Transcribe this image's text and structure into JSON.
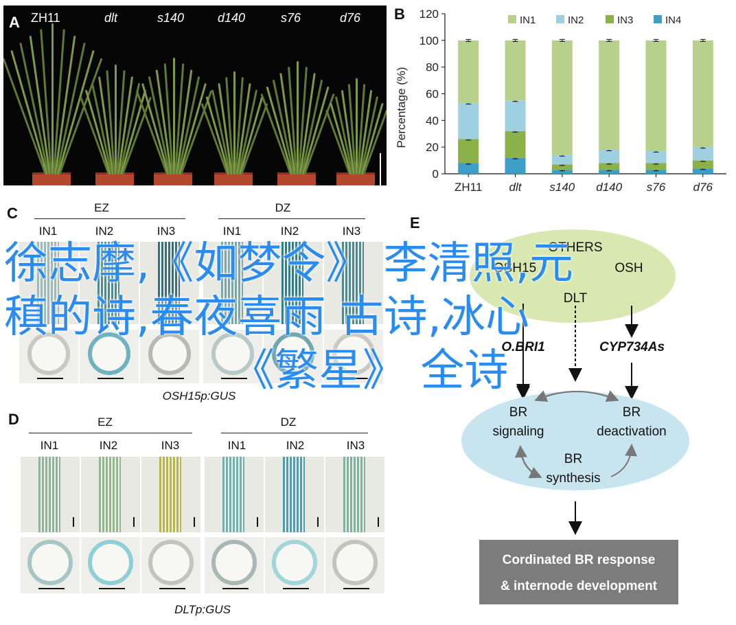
{
  "panels": {
    "a": {
      "letter": "A",
      "labels": [
        "ZH11",
        "dlt",
        "s140",
        "d140",
        "s76",
        "d76"
      ]
    },
    "b": {
      "letter": "B"
    },
    "c": {
      "letter": "C",
      "group1": "EZ",
      "group2": "DZ",
      "sub": [
        "IN1",
        "IN2",
        "IN3",
        "IN1",
        "IN2",
        "IN3"
      ],
      "caption": "OSH15p:GUS"
    },
    "d": {
      "letter": "D",
      "group1": "EZ",
      "group2": "DZ",
      "sub": [
        "IN1",
        "IN2",
        "IN3",
        "IN1",
        "IN2",
        "IN3"
      ],
      "caption": "DLTp:GUS"
    },
    "e": {
      "letter": "E",
      "others": "OTHERS",
      "osh": "OSH15",
      "osh_partial": "OSH",
      "dlt": "DLT",
      "bri1": "O.BRI1",
      "cyp": "CYP734As",
      "br_signaling_1": "BR",
      "br_signaling_2": "signaling",
      "br_deact_1": "BR",
      "br_deact_2": "deactivation",
      "br_synth_1": "BR",
      "br_synth_2": "synthesis",
      "box_line1": "Cordinated BR response",
      "box_line2": "& internode development"
    }
  },
  "overlay": {
    "line1": "徐志摩,《如梦令》 李清照,元",
    "line2": "稹的诗,春夜喜雨 古诗,冰心",
    "line3": "《繁星》 全诗"
  },
  "chart_data": {
    "type": "bar",
    "stacked": true,
    "categories": [
      "ZH11",
      "dlt",
      "s140",
      "d140",
      "s76",
      "d76"
    ],
    "series": [
      {
        "name": "IN4",
        "values": [
          8,
          12,
          3,
          3,
          3,
          4
        ],
        "color": "#3f9ec6"
      },
      {
        "name": "IN3",
        "values": [
          18,
          20,
          4,
          5,
          5,
          6
        ],
        "color": "#8cb04a"
      },
      {
        "name": "IN2",
        "values": [
          27,
          23,
          7,
          10,
          9,
          10
        ],
        "color": "#9fd0e0"
      },
      {
        "name": "IN1",
        "values": [
          47,
          45,
          86,
          82,
          83,
          80
        ],
        "color": "#b7d08c"
      }
    ],
    "ylabel": "Percentage (%)",
    "ylim": [
      0,
      120
    ],
    "yticks": [
      0,
      20,
      40,
      60,
      80,
      100,
      120
    ],
    "legend": "top",
    "legend_order": [
      "IN1",
      "IN2",
      "IN3",
      "IN4"
    ]
  }
}
